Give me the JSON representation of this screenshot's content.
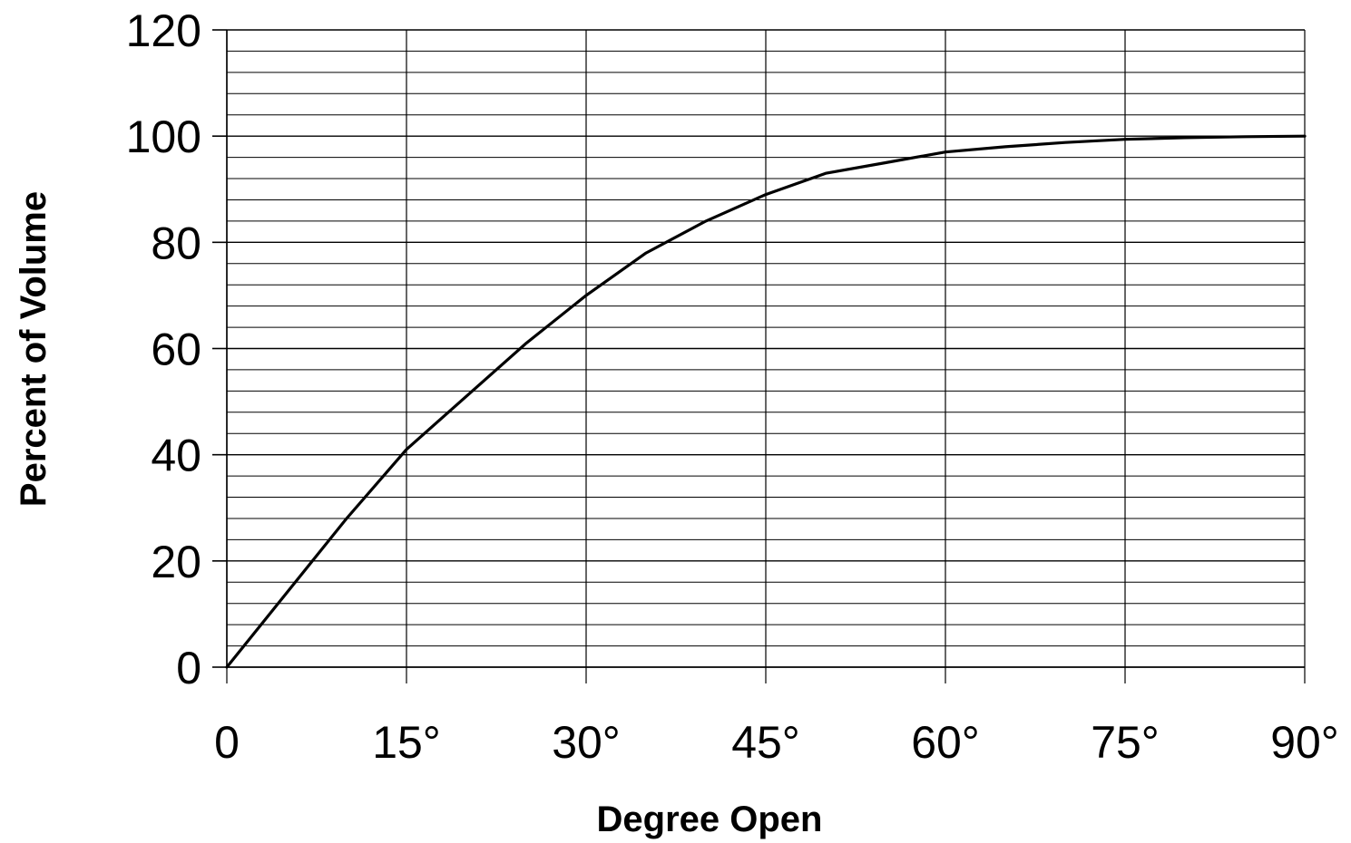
{
  "chart_data": {
    "type": "line",
    "xlabel": "Degree Open",
    "ylabel": "Percent of Volume",
    "xlim": [
      0,
      90
    ],
    "ylim": [
      0,
      120
    ],
    "x_ticks": [
      0,
      15,
      30,
      45,
      60,
      75,
      90
    ],
    "x_tick_labels": [
      "0",
      "15°",
      "30°",
      "45°",
      "60°",
      "75°",
      "90°"
    ],
    "y_ticks": [
      0,
      20,
      40,
      60,
      80,
      100,
      120
    ],
    "y_tick_labels": [
      "0",
      "20",
      "40",
      "60",
      "80",
      "100",
      "120"
    ],
    "y_minor_step": 4,
    "grid": true,
    "series": [
      {
        "x": [
          0,
          5,
          10,
          15,
          20,
          25,
          30,
          35,
          40,
          45,
          50,
          55,
          60,
          65,
          70,
          75,
          80,
          85,
          90
        ],
        "y": [
          0,
          14,
          28,
          41,
          51,
          61,
          70,
          78,
          84,
          89,
          93,
          95,
          97,
          98,
          98.8,
          99.4,
          99.7,
          99.9,
          100
        ]
      }
    ]
  }
}
